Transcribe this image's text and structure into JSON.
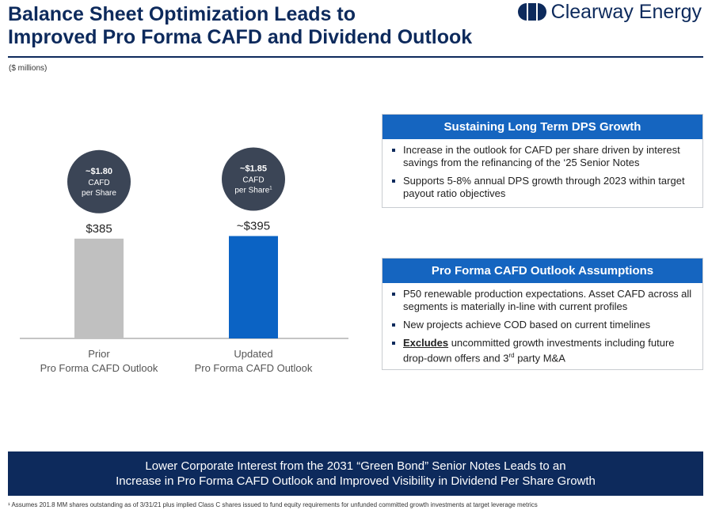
{
  "header": {
    "title_line1": "Balance Sheet Optimization Leads to",
    "title_line2": "Improved Pro Forma CAFD and Dividend Outlook",
    "logo_text": "Clearway Energy",
    "units": "($ millions)"
  },
  "chart_data": {
    "type": "bar",
    "categories": [
      "Prior Pro Forma CAFD Outlook",
      "Updated Pro Forma CAFD Outlook"
    ],
    "category_lines": [
      [
        "Prior",
        "Pro Forma CAFD Outlook"
      ],
      [
        "Updated",
        "Pro Forma CAFD Outlook"
      ]
    ],
    "values": [
      385,
      395
    ],
    "value_labels": [
      "$385",
      "~$395"
    ],
    "bubbles": [
      {
        "amount": "~$1.80",
        "line2": "CAFD",
        "line3": "per Share",
        "sup": ""
      },
      {
        "amount": "~$1.85",
        "line2": "CAFD",
        "line3": "per Share",
        "sup": "1"
      }
    ],
    "colors": [
      "#c0c0c0",
      "#0b63c4"
    ],
    "bubble_color": "#3b4556",
    "ylim": [
      0,
      430
    ]
  },
  "panels": [
    {
      "title": "Sustaining Long Term DPS Growth",
      "items": [
        "Increase in the outlook for CAFD per share driven by interest savings from the refinancing of the ‘25 Senior Notes",
        "Supports 5-8% annual DPS growth through 2023 within target payout ratio objectives"
      ]
    },
    {
      "title": "Pro Forma CAFD Outlook Assumptions",
      "items": [
        "P50 renewable production expectations. Asset CAFD across all segments is materially in-line with current profiles",
        "New projects achieve COD based on current timelines"
      ],
      "item3_bold": "Excludes",
      "item3_rest_a": " uncommitted growth investments including future drop-down offers and 3",
      "item3_sup": "rd",
      "item3_rest_b": " party M&A"
    }
  ],
  "banner": {
    "line1": "Lower Corporate Interest from the 2031 “Green Bond” Senior Notes Leads to an",
    "line2": "Increase in Pro Forma CAFD Outlook and Improved Visibility in Dividend Per Share Growth"
  },
  "footnote": "¹ Assumes 201.8 MM shares outstanding as of 3/31/21 plus implied Class C shares issued to fund equity requirements for unfunded committed growth investments at target leverage metrics",
  "colors": {
    "navy": "#0d2a5c",
    "panel_blue": "#1565c0"
  },
  "icons": {
    "logo": "clearway-logo-icon",
    "bullet": "square-bullet-icon"
  }
}
